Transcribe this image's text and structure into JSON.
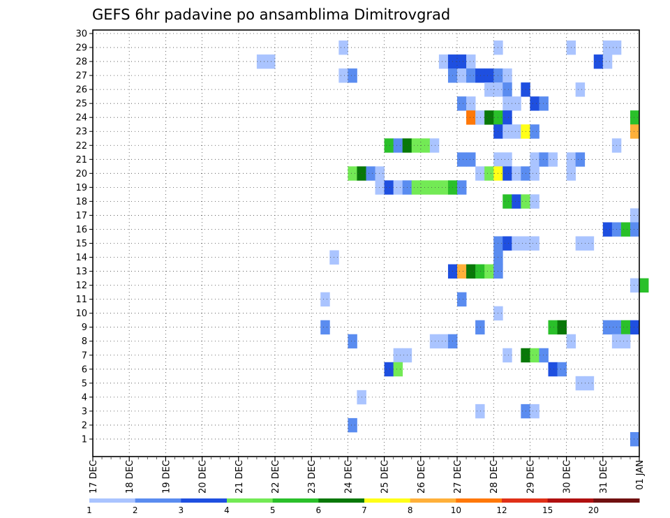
{
  "chart_data": {
    "type": "heatmap",
    "title": "GEFS 6hr padavine po ansamblima Dimitrovgrad",
    "xlabel": "",
    "ylabel": "",
    "x_tick_labels": [
      "17 DEC",
      "18 DEC",
      "19 DEC",
      "20 DEC",
      "21 DEC",
      "22 DEC",
      "23 DEC",
      "24 DEC",
      "25 DEC",
      "26 DEC",
      "27 DEC",
      "28 DEC",
      "29 DEC",
      "30 DEC",
      "31 DEC",
      "01 JAN"
    ],
    "y_tick_labels": [
      "1",
      "2",
      "3",
      "4",
      "5",
      "6",
      "7",
      "8",
      "9",
      "10",
      "11",
      "12",
      "13",
      "14",
      "15",
      "16",
      "17",
      "18",
      "19",
      "20",
      "21",
      "22",
      "23",
      "24",
      "25",
      "26",
      "27",
      "28",
      "29",
      "30"
    ],
    "time_steps_per_day": 4,
    "levels": [
      1,
      2,
      3,
      4,
      5,
      6,
      7,
      8,
      10,
      12,
      15,
      20
    ],
    "colorbar_labels": [
      "1",
      "2",
      "3",
      "4",
      "5",
      "6",
      "7",
      "8",
      "10",
      "12",
      "15",
      "20"
    ],
    "colors": [
      "#aac4ff",
      "#5a8cf0",
      "#1e4fe0",
      "#73ea55",
      "#2ac02a",
      "#087808",
      "#ffff18",
      "#ffb03a",
      "#ff7808",
      "#e03018",
      "#b01010",
      "#701010"
    ],
    "cell_format": "[ensemble member, time step index from 17 DEC 00Z, value class index into colors]",
    "cells": [
      [
        29,
        27,
        0
      ],
      [
        29,
        44,
        0
      ],
      [
        29,
        52,
        0
      ],
      [
        29,
        56,
        0
      ],
      [
        29,
        57,
        0
      ],
      [
        28,
        18,
        0
      ],
      [
        28,
        19,
        0
      ],
      [
        28,
        38,
        0
      ],
      [
        28,
        39,
        2
      ],
      [
        28,
        40,
        2
      ],
      [
        28,
        41,
        0
      ],
      [
        28,
        55,
        2
      ],
      [
        28,
        56,
        0
      ],
      [
        27,
        27,
        0
      ],
      [
        27,
        28,
        1
      ],
      [
        27,
        39,
        1
      ],
      [
        27,
        40,
        0
      ],
      [
        27,
        41,
        1
      ],
      [
        27,
        42,
        2
      ],
      [
        27,
        43,
        2
      ],
      [
        27,
        44,
        1
      ],
      [
        27,
        45,
        0
      ],
      [
        26,
        43,
        0
      ],
      [
        26,
        44,
        0
      ],
      [
        26,
        45,
        1
      ],
      [
        26,
        47,
        2
      ],
      [
        26,
        53,
        0
      ],
      [
        25,
        40,
        1
      ],
      [
        25,
        41,
        0
      ],
      [
        25,
        45,
        0
      ],
      [
        25,
        46,
        0
      ],
      [
        25,
        48,
        2
      ],
      [
        25,
        49,
        1
      ],
      [
        24,
        41,
        8
      ],
      [
        24,
        42,
        0
      ],
      [
        24,
        43,
        5
      ],
      [
        24,
        44,
        4
      ],
      [
        24,
        45,
        2
      ],
      [
        24,
        59,
        4
      ],
      [
        23,
        44,
        2
      ],
      [
        23,
        45,
        0
      ],
      [
        23,
        46,
        0
      ],
      [
        23,
        47,
        6
      ],
      [
        23,
        48,
        1
      ],
      [
        23,
        59,
        7
      ],
      [
        22,
        32,
        4
      ],
      [
        22,
        33,
        1
      ],
      [
        22,
        34,
        5
      ],
      [
        22,
        35,
        3
      ],
      [
        22,
        36,
        3
      ],
      [
        22,
        37,
        0
      ],
      [
        22,
        57,
        0
      ],
      [
        21,
        40,
        1
      ],
      [
        21,
        41,
        1
      ],
      [
        21,
        44,
        0
      ],
      [
        21,
        45,
        0
      ],
      [
        21,
        48,
        0
      ],
      [
        21,
        49,
        1
      ],
      [
        21,
        50,
        0
      ],
      [
        21,
        52,
        0
      ],
      [
        21,
        53,
        1
      ],
      [
        20,
        28,
        3
      ],
      [
        20,
        29,
        5
      ],
      [
        20,
        30,
        1
      ],
      [
        20,
        31,
        0
      ],
      [
        20,
        42,
        0
      ],
      [
        20,
        43,
        3
      ],
      [
        20,
        44,
        6
      ],
      [
        20,
        45,
        2
      ],
      [
        20,
        46,
        0
      ],
      [
        20,
        47,
        1
      ],
      [
        20,
        48,
        0
      ],
      [
        20,
        52,
        0
      ],
      [
        19,
        31,
        0
      ],
      [
        19,
        32,
        2
      ],
      [
        19,
        33,
        0
      ],
      [
        19,
        34,
        1
      ],
      [
        19,
        35,
        3
      ],
      [
        19,
        36,
        3
      ],
      [
        19,
        37,
        3
      ],
      [
        19,
        38,
        3
      ],
      [
        19,
        39,
        4
      ],
      [
        19,
        40,
        1
      ],
      [
        18,
        45,
        4
      ],
      [
        18,
        46,
        2
      ],
      [
        18,
        47,
        3
      ],
      [
        18,
        48,
        0
      ],
      [
        17,
        59,
        0
      ],
      [
        16,
        56,
        2
      ],
      [
        16,
        57,
        1
      ],
      [
        16,
        58,
        4
      ],
      [
        16,
        59,
        1
      ],
      [
        15,
        44,
        1
      ],
      [
        15,
        45,
        2
      ],
      [
        15,
        46,
        0
      ],
      [
        15,
        47,
        0
      ],
      [
        15,
        48,
        0
      ],
      [
        15,
        53,
        0
      ],
      [
        15,
        54,
        0
      ],
      [
        14,
        26,
        0
      ],
      [
        14,
        44,
        1
      ],
      [
        13,
        39,
        2
      ],
      [
        13,
        40,
        7
      ],
      [
        13,
        41,
        5
      ],
      [
        13,
        42,
        4
      ],
      [
        13,
        43,
        3
      ],
      [
        13,
        44,
        1
      ],
      [
        12,
        59,
        0
      ],
      [
        12,
        60,
        4
      ],
      [
        11,
        25,
        0
      ],
      [
        11,
        40,
        1
      ],
      [
        10,
        44,
        0
      ],
      [
        9,
        25,
        1
      ],
      [
        9,
        42,
        1
      ],
      [
        9,
        50,
        4
      ],
      [
        9,
        51,
        5
      ],
      [
        9,
        56,
        1
      ],
      [
        9,
        57,
        1
      ],
      [
        9,
        58,
        4
      ],
      [
        9,
        59,
        2
      ],
      [
        8,
        28,
        1
      ],
      [
        8,
        37,
        0
      ],
      [
        8,
        38,
        0
      ],
      [
        8,
        39,
        1
      ],
      [
        8,
        52,
        0
      ],
      [
        8,
        57,
        0
      ],
      [
        8,
        58,
        0
      ],
      [
        7,
        33,
        0
      ],
      [
        7,
        34,
        0
      ],
      [
        7,
        45,
        0
      ],
      [
        7,
        47,
        5
      ],
      [
        7,
        48,
        3
      ],
      [
        7,
        49,
        1
      ],
      [
        6,
        32,
        2
      ],
      [
        6,
        33,
        3
      ],
      [
        6,
        50,
        2
      ],
      [
        6,
        51,
        1
      ],
      [
        5,
        53,
        0
      ],
      [
        5,
        54,
        0
      ],
      [
        4,
        29,
        0
      ],
      [
        3,
        42,
        0
      ],
      [
        3,
        47,
        1
      ],
      [
        3,
        48,
        0
      ],
      [
        2,
        28,
        1
      ],
      [
        1,
        59,
        1
      ]
    ]
  }
}
